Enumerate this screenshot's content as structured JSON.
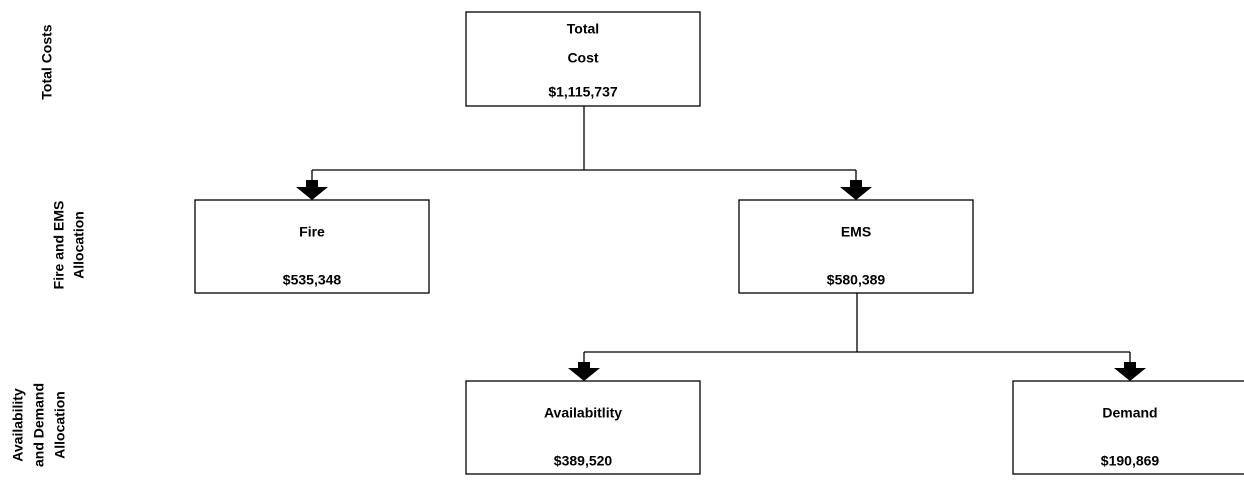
{
  "rows": [
    {
      "lines": [
        "Total Costs"
      ]
    },
    {
      "lines": [
        "Fire and EMS",
        "Allocation"
      ]
    },
    {
      "lines": [
        "Availability",
        "and Demand",
        "Allocation"
      ]
    }
  ],
  "nodes": [
    {
      "lines": [
        "Total",
        "Cost"
      ],
      "value": "$1,115,737"
    },
    {
      "lines": [
        "Fire"
      ],
      "value": "$535,348"
    },
    {
      "lines": [
        "EMS"
      ],
      "value": "$580,389"
    },
    {
      "lines": [
        "Availabitlity"
      ],
      "value": "$389,520"
    },
    {
      "lines": [
        "Demand"
      ],
      "value": "$190,869"
    }
  ]
}
